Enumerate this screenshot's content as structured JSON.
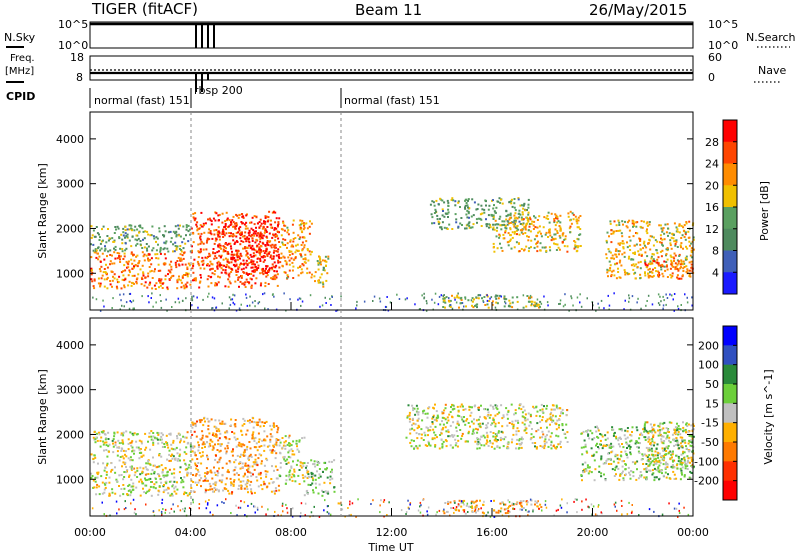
{
  "header": {
    "radar": "TIGER (fitACF)",
    "beam": "Beam 11",
    "date": "26/May/2015"
  },
  "strip_labels": {
    "nsky": "N.Sky",
    "nsearch": "N.Search",
    "freq_line1": "Freq.",
    "freq_line2": "[MHz]",
    "nave": "Nave",
    "cpid": "CPID"
  },
  "nsky_ticks": [
    "10^5",
    "10^0"
  ],
  "freq_ticks": [
    "18",
    "8"
  ],
  "nave_ticks": [
    "60",
    "0"
  ],
  "cpid_segments": [
    {
      "label": "normal (fast) 151",
      "start_h": 0.0,
      "end_h": 4.0
    },
    {
      "label": "rbsp 200",
      "start_h": 4.0,
      "end_h": 10.0
    },
    {
      "label": "normal (fast) 151",
      "start_h": 10.0,
      "end_h": 24.0
    }
  ],
  "time_axis": {
    "label": "Time UT",
    "ticks": [
      "00:00",
      "04:00",
      "08:00",
      "12:00",
      "16:00",
      "20:00",
      "00:00"
    ],
    "range_h": [
      0,
      24
    ]
  },
  "range_axis": {
    "label": "Slant Range [km]",
    "ticks": [
      "1000",
      "2000",
      "3000",
      "4000"
    ],
    "tick_values": [
      1000,
      2000,
      3000,
      4000
    ],
    "range_km": [
      180,
      4600
    ]
  },
  "chart_data": [
    {
      "type": "heatmap",
      "title": "Power",
      "colorbar_label": "Power [dB]",
      "colorbar_ticks": [
        "4",
        "8",
        "12",
        "16",
        "20",
        "24",
        "28"
      ],
      "colorbar_range": [
        0,
        30
      ],
      "colors": [
        "#1a1aff",
        "#3f5fb8",
        "#4e8a5e",
        "#5aa060",
        "#f0c000",
        "#ff8c00",
        "#ff4500",
        "#ff0000"
      ],
      "x_unit": "hours UT",
      "y_unit": "km",
      "regions": [
        {
          "t0": 0.0,
          "t1": 4.0,
          "r0": 650,
          "r1": 1500,
          "value": 22
        },
        {
          "t0": 0.0,
          "t1": 4.0,
          "r0": 1500,
          "r1": 2100,
          "value": 12
        },
        {
          "t0": 4.0,
          "t1": 7.5,
          "r0": 700,
          "r1": 2400,
          "value": 24
        },
        {
          "t0": 5.0,
          "t1": 7.5,
          "r0": 1000,
          "r1": 2200,
          "value": 27
        },
        {
          "t0": 7.5,
          "t1": 8.8,
          "r0": 900,
          "r1": 2200,
          "value": 20
        },
        {
          "t0": 8.8,
          "t1": 9.5,
          "r0": 700,
          "r1": 1400,
          "value": 16
        },
        {
          "t0": 13.5,
          "t1": 17.5,
          "r0": 2000,
          "r1": 2700,
          "value": 12
        },
        {
          "t0": 16.0,
          "t1": 19.5,
          "r0": 1500,
          "r1": 2400,
          "value": 18
        },
        {
          "t0": 14.0,
          "t1": 18.0,
          "r0": 250,
          "r1": 550,
          "value": 16
        },
        {
          "t0": 20.5,
          "t1": 24.0,
          "r0": 900,
          "r1": 2200,
          "value": 18
        },
        {
          "t0": 22.0,
          "t1": 24.0,
          "r0": 900,
          "r1": 1300,
          "value": 24
        }
      ]
    },
    {
      "type": "heatmap",
      "title": "Velocity",
      "colorbar_label": "Velocity [m s^-1]",
      "colorbar_ticks": [
        "200",
        "100",
        "50",
        "15",
        "-15",
        "-50",
        "-100",
        "-200"
      ],
      "colorbar_range": [
        -250,
        250
      ],
      "colors": [
        "#0000ff",
        "#3050c0",
        "#2a8a3a",
        "#6ccf3a",
        "#c0c0c0",
        "#ffb000",
        "#ff7a00",
        "#ff3000",
        "#ff0000"
      ],
      "x_unit": "hours UT",
      "y_unit": "km",
      "regions": [
        {
          "t0": 0.0,
          "t1": 4.0,
          "r0": 650,
          "r1": 2100,
          "value": 0
        },
        {
          "t0": 4.0,
          "t1": 7.5,
          "r0": 700,
          "r1": 2400,
          "value": -60
        },
        {
          "t0": 7.5,
          "t1": 8.5,
          "r0": 900,
          "r1": 2000,
          "value": 0
        },
        {
          "t0": 8.5,
          "t1": 9.7,
          "r0": 650,
          "r1": 1450,
          "value": 40
        },
        {
          "t0": 12.5,
          "t1": 19.0,
          "r0": 1700,
          "r1": 2700,
          "value": 0
        },
        {
          "t0": 14.0,
          "t1": 18.0,
          "r0": 250,
          "r1": 550,
          "value": -60
        },
        {
          "t0": 19.5,
          "t1": 24.0,
          "r0": 1000,
          "r1": 2200,
          "value": 30
        },
        {
          "t0": 22.0,
          "t1": 24.0,
          "r0": 1200,
          "r1": 2300,
          "value": 0
        }
      ]
    }
  ]
}
